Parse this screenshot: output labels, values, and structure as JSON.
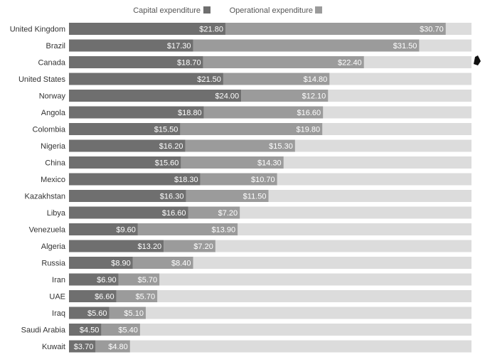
{
  "chart_data": {
    "type": "bar",
    "orientation": "horizontal",
    "stacked": true,
    "categories": [
      "United Kingdom",
      "Brazil",
      "Canada",
      "United States",
      "Norway",
      "Angola",
      "Colombia",
      "Nigeria",
      "China",
      "Mexico",
      "Kazakhstan",
      "Libya",
      "Venezuela",
      "Algeria",
      "Russia",
      "Iran",
      "UAE",
      "Iraq",
      "Saudi Arabia",
      "Kuwait"
    ],
    "series": [
      {
        "name": "Capital expenditure",
        "color": "#6f6f6f",
        "values": [
          21.8,
          17.3,
          18.7,
          21.5,
          24.0,
          18.8,
          15.5,
          16.2,
          15.6,
          18.3,
          16.3,
          16.6,
          9.6,
          13.2,
          8.9,
          6.9,
          6.6,
          5.6,
          4.5,
          3.7
        ],
        "labels": [
          "$21.80",
          "$17.30",
          "$18.70",
          "$21.50",
          "$24.00",
          "$18.80",
          "$15.50",
          "$16.20",
          "$15.60",
          "$18.30",
          "$16.30",
          "$16.60",
          "$9.60",
          "$13.20",
          "$8.90",
          "$6.90",
          "$6.60",
          "$5.60",
          "$4.50",
          "$3.70"
        ]
      },
      {
        "name": "Operational expenditure",
        "color": "#9b9b9b",
        "values": [
          30.7,
          31.5,
          22.4,
          14.8,
          12.1,
          16.6,
          19.8,
          15.3,
          14.3,
          10.7,
          11.5,
          7.2,
          13.9,
          7.2,
          8.4,
          5.7,
          5.7,
          5.1,
          5.4,
          4.8
        ],
        "labels": [
          "$30.70",
          "$31.50",
          "$22.40",
          "$14.80",
          "$12.10",
          "$16.60",
          "$19.80",
          "$15.30",
          "$14.30",
          "$10.70",
          "$11.50",
          "$7.20",
          "$13.90",
          "$7.20",
          "$8.40",
          "$5.70",
          "$5.70",
          "$5.10",
          "$5.40",
          "$4.80"
        ]
      }
    ],
    "xlim": [
      0,
      57
    ],
    "background_track_color": "#dcdcdc",
    "legend_position": "top",
    "grid": false
  }
}
